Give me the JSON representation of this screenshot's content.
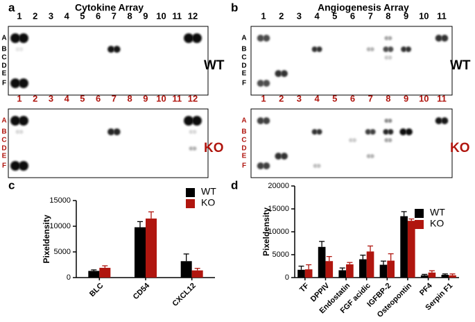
{
  "panels": [
    {
      "label": "a",
      "title": "Cytokine Array",
      "columns": [
        "1",
        "2",
        "3",
        "4",
        "5",
        "6",
        "7",
        "8",
        "9",
        "10",
        "11",
        "12"
      ],
      "rows": [
        "A",
        "B",
        "C",
        "D",
        "E",
        "F"
      ],
      "conditions": [
        "WT",
        "KO"
      ]
    },
    {
      "label": "b",
      "title": "Angiogenesis Array",
      "columns": [
        "1",
        "2",
        "3",
        "4",
        "5",
        "6",
        "7",
        "8",
        "9",
        "10",
        "11"
      ],
      "rows": [
        "A",
        "B",
        "C",
        "D",
        "E",
        "F"
      ],
      "conditions": [
        "WT",
        "KO"
      ]
    }
  ],
  "chart_data": [
    {
      "type": "bar",
      "label": "c",
      "y_label": "Pixeldensity",
      "categories": [
        "BLC",
        "CD54",
        "CXCL12"
      ],
      "series": [
        {
          "name": "WT",
          "color": "#000000",
          "values": [
            1300,
            9800,
            3200
          ],
          "errors": [
            200,
            1100,
            1400
          ]
        },
        {
          "name": "KO",
          "color": "#b0160f",
          "values": [
            1900,
            11500,
            1400
          ],
          "errors": [
            400,
            1300,
            400
          ]
        }
      ],
      "ylim": [
        0,
        15000
      ],
      "yticks": [
        0,
        5000,
        10000,
        15000
      ],
      "legend": "upper right"
    },
    {
      "type": "bar",
      "label": "d",
      "y_label": "Pixeldensity",
      "categories": [
        "TF",
        "DPPIV",
        "Endostatin",
        "FGF acidic",
        "IGFBP-2",
        "Osteopontin",
        "PF4",
        "Serpin F1"
      ],
      "series": [
        {
          "name": "WT",
          "color": "#000000",
          "values": [
            1700,
            6700,
            1600,
            4000,
            2800,
            13400,
            500,
            600
          ],
          "errors": [
            800,
            1200,
            500,
            900,
            800,
            1000,
            200,
            200
          ]
        },
        {
          "name": "KO",
          "color": "#b0160f",
          "values": [
            1800,
            3600,
            2900,
            5700,
            3700,
            12400,
            1100,
            500
          ],
          "errors": [
            1000,
            1000,
            400,
            1200,
            1500,
            400,
            400,
            300
          ]
        }
      ],
      "ylim": [
        0,
        20000
      ],
      "yticks": [
        0,
        5000,
        10000,
        15000,
        20000
      ],
      "legend": "upper right"
    }
  ]
}
